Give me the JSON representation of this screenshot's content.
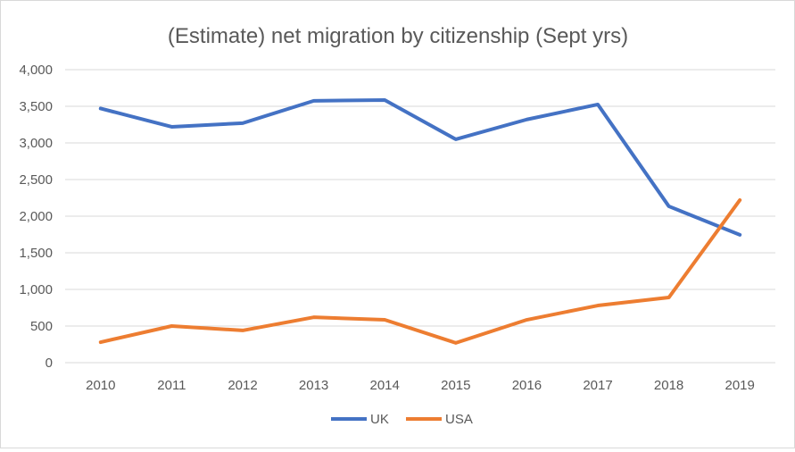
{
  "chart_data": {
    "type": "line",
    "title": "(Estimate) net migration by citizenship (Sept yrs)",
    "xlabel": "",
    "ylabel": "",
    "categories": [
      "2010",
      "2011",
      "2012",
      "2013",
      "2014",
      "2015",
      "2016",
      "2017",
      "2018",
      "2019"
    ],
    "ylim": [
      0,
      4000
    ],
    "yticks": [
      0,
      500,
      1000,
      1500,
      2000,
      2500,
      3000,
      3500,
      4000
    ],
    "ytick_labels": [
      "0",
      "500",
      "1,000",
      "1,500",
      "2,000",
      "2,500",
      "3,000",
      "3,500",
      "4,000"
    ],
    "grid": true,
    "legend_position": "bottom",
    "series": [
      {
        "name": "UK",
        "color": "#4472c4",
        "values": [
          3470,
          3220,
          3270,
          3575,
          3585,
          3050,
          3320,
          3525,
          2135,
          1745
        ]
      },
      {
        "name": "USA",
        "color": "#ed7d31",
        "values": [
          280,
          500,
          440,
          620,
          585,
          270,
          585,
          780,
          890,
          2220
        ]
      }
    ]
  }
}
